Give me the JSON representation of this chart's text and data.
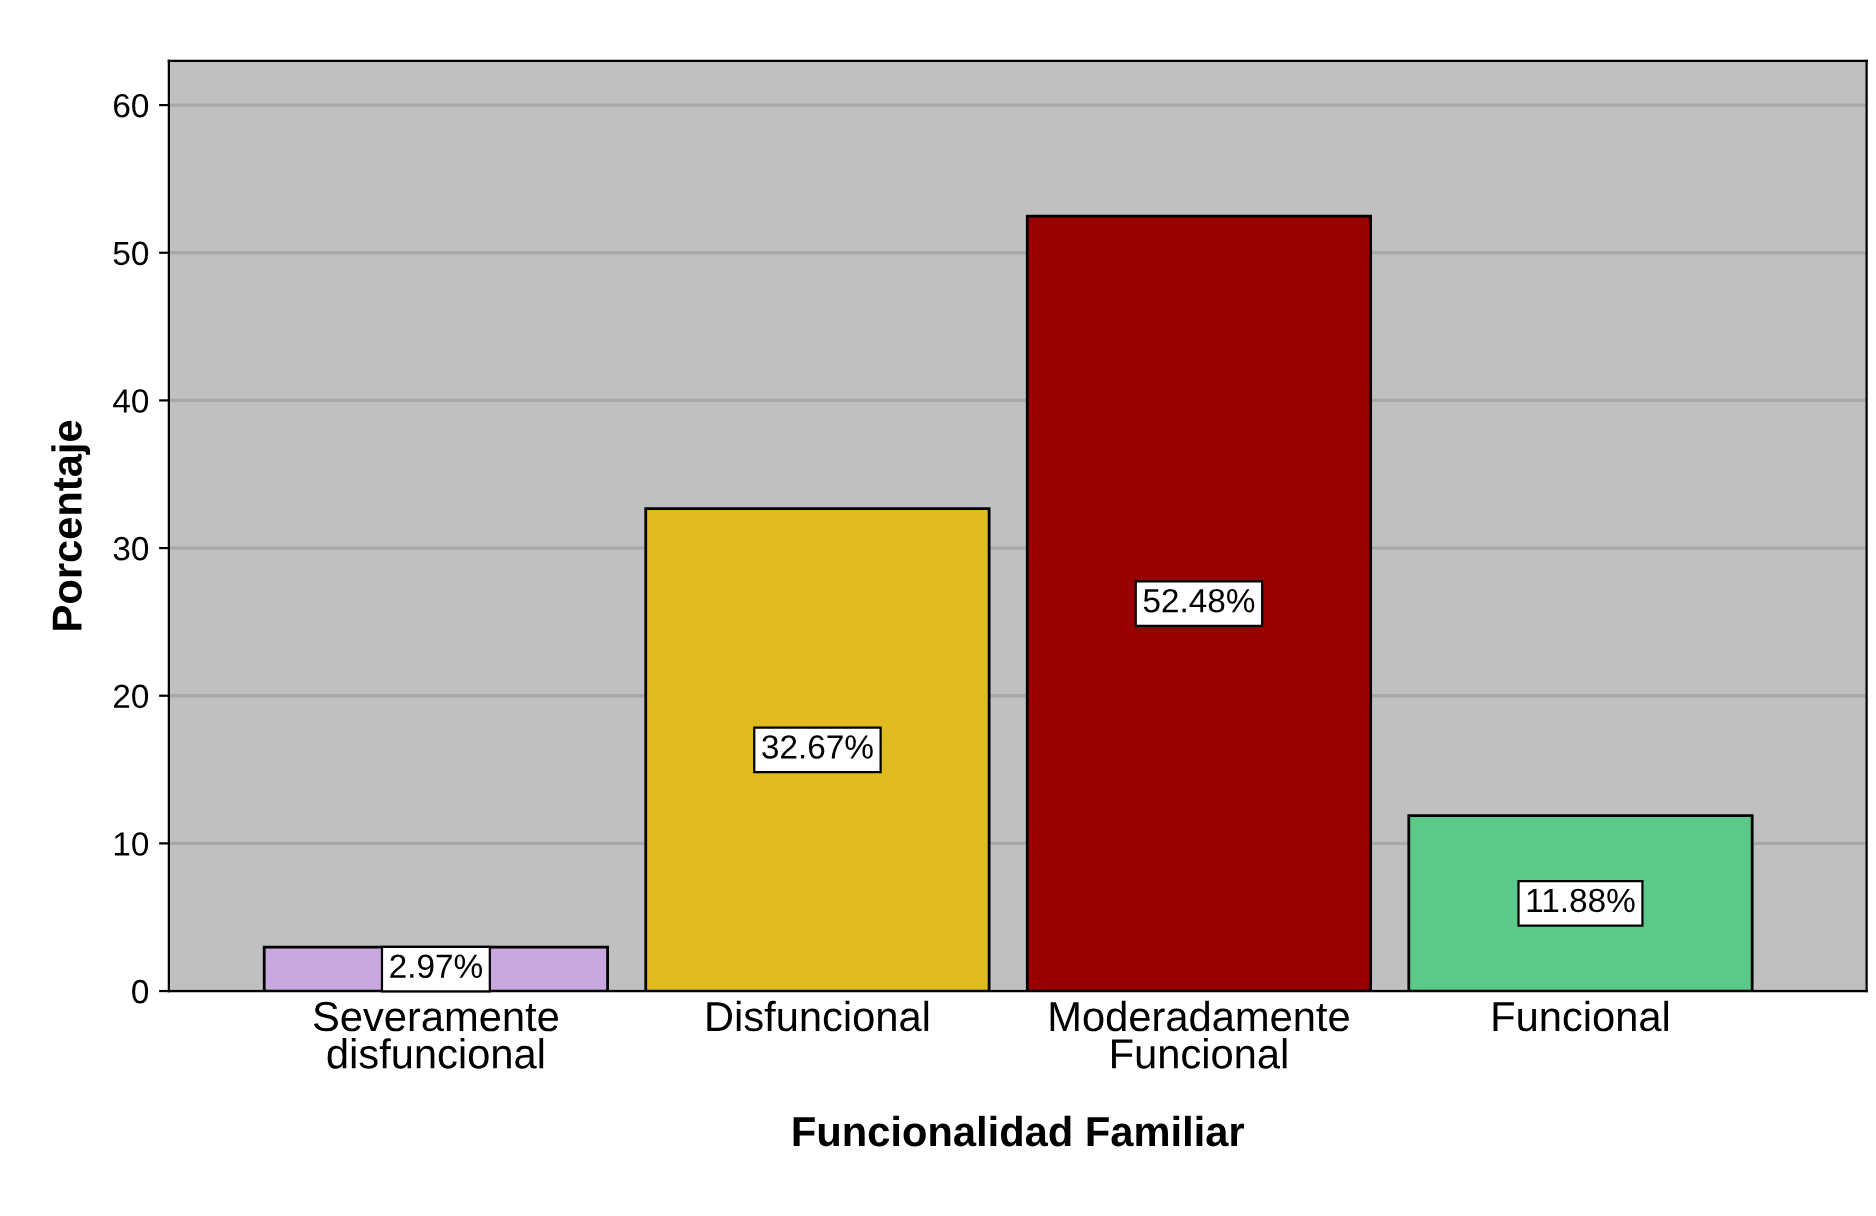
{
  "chart_data": {
    "type": "bar",
    "xlabel": "Funcionalidad Familiar",
    "ylabel": "Porcentaje",
    "categories": [
      "Severamente disfuncional",
      "Disfuncional",
      "Moderadamente Funcional",
      "Funcional"
    ],
    "values": [
      2.97,
      32.67,
      52.48,
      11.88
    ],
    "colors": [
      "#c9a8e0",
      "#e0bb20",
      "#990000",
      "#5cc98a"
    ],
    "value_labels": [
      "2.97%",
      "32.67%",
      "52.48%",
      "11.88%"
    ],
    "ylim": [
      0,
      63
    ],
    "yticks": [
      0,
      10,
      20,
      30,
      40,
      50,
      60
    ],
    "grid": "y",
    "legend": false
  }
}
